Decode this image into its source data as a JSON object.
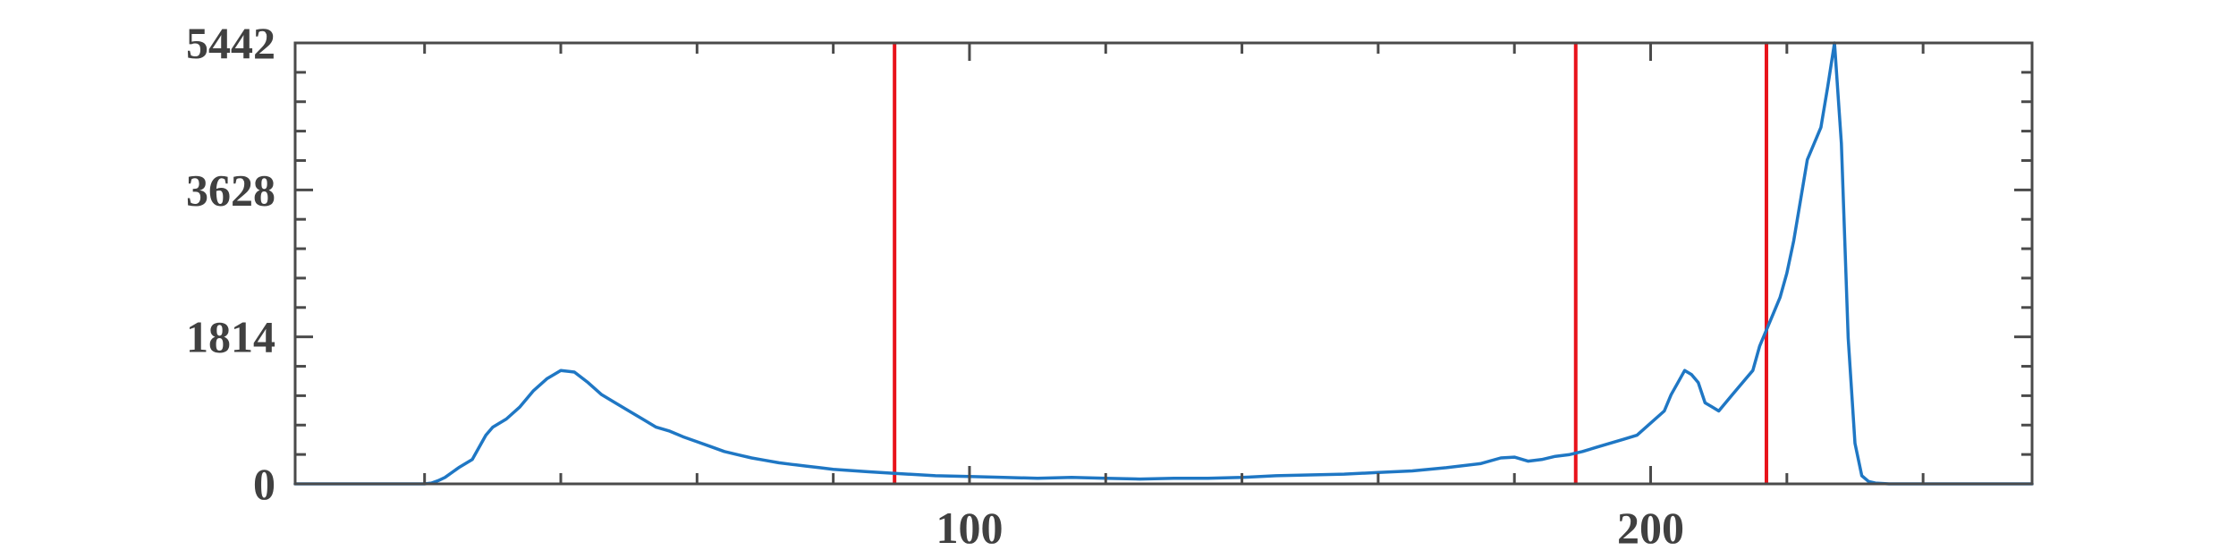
{
  "chart_data": {
    "type": "line",
    "title": "",
    "xlabel": "",
    "ylabel": "",
    "xlim": [
      1,
      256
    ],
    "ylim": [
      0,
      5442
    ],
    "xticks": [
      100,
      200
    ],
    "xtick_labels": [
      "100",
      "200"
    ],
    "xticks_minor": [
      20,
      40,
      60,
      80,
      120,
      140,
      160,
      180,
      220,
      240
    ],
    "yticks": [
      0,
      1814,
      3628,
      5442
    ],
    "ytick_labels": [
      "0",
      "1814",
      "3628",
      "5442"
    ],
    "yticks_minor_step": 362.8,
    "grid": false,
    "legend": "none",
    "colors": {
      "series": "#1f77c4",
      "markers": "#e8131b",
      "axis": "#4a4a4a"
    },
    "series": [
      {
        "x": [
          1,
          10,
          15,
          20,
          21,
          22,
          23,
          25,
          27,
          29,
          30,
          32,
          34,
          36,
          38,
          40,
          42,
          44,
          46,
          48,
          50,
          52,
          54,
          56,
          58,
          60,
          62,
          64,
          66,
          68,
          70,
          72,
          74,
          76,
          78,
          80,
          85,
          89,
          95,
          100,
          105,
          110,
          115,
          120,
          125,
          130,
          135,
          140,
          145,
          150,
          155,
          160,
          165,
          170,
          175,
          178,
          180,
          182,
          184,
          186,
          188,
          190,
          192,
          194,
          196,
          198,
          200,
          202,
          203,
          204,
          205,
          206,
          207,
          208,
          209,
          210,
          212,
          214,
          215,
          216,
          217,
          218,
          219,
          220,
          221,
          222,
          223,
          224,
          225,
          226,
          227,
          228,
          229,
          230,
          231,
          232,
          233,
          235,
          240,
          256
        ],
        "y": [
          0,
          0,
          0,
          0,
          10,
          40,
          80,
          200,
          300,
          600,
          700,
          800,
          950,
          1150,
          1300,
          1400,
          1380,
          1250,
          1100,
          1000,
          900,
          800,
          700,
          650,
          580,
          520,
          460,
          400,
          360,
          320,
          290,
          260,
          240,
          220,
          200,
          180,
          150,
          130,
          100,
          90,
          80,
          70,
          80,
          70,
          60,
          70,
          70,
          80,
          100,
          110,
          120,
          140,
          160,
          200,
          250,
          320,
          330,
          280,
          300,
          340,
          360,
          400,
          450,
          500,
          550,
          600,
          750,
          900,
          1100,
          1250,
          1400,
          1350,
          1250,
          1000,
          950,
          900,
          1100,
          1300,
          1400,
          1700,
          1900,
          2100,
          2300,
          2600,
          3000,
          3500,
          4000,
          4200,
          4400,
          4900,
          5442,
          4200,
          1800,
          500,
          100,
          30,
          10,
          0,
          0,
          0
        ]
      }
    ],
    "markers": [
      {
        "orientation": "vertical",
        "x": 89
      },
      {
        "orientation": "vertical",
        "x": 189
      },
      {
        "orientation": "vertical",
        "x": 217
      }
    ]
  }
}
